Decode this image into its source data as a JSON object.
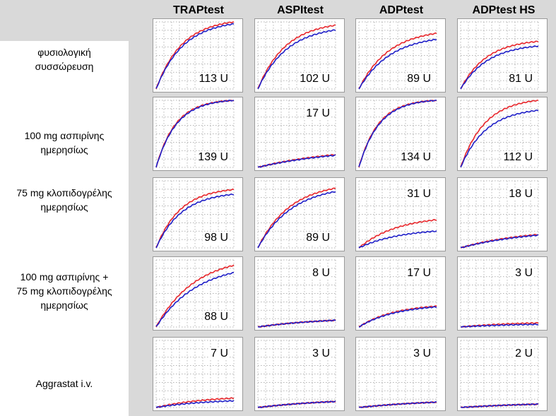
{
  "columns": [
    "TRAPtest",
    "ASPItest",
    "ADPtest",
    "ADPtest HS"
  ],
  "rows": [
    "φυσιολογική\nσυσσώρευση",
    "100 mg ασπιρίνης\nημερησίως",
    "75 mg κλοπιδογρέλης\nημερησίως",
    "100 mg ασπιρίνης +\n75 mg κλοπιδογρέλης\nημερησίως",
    "Aggrastat i.v."
  ],
  "colors": {
    "red": "#e8262b",
    "blue": "#1f1fc8",
    "grid": "#9a9a9a"
  },
  "chart_data": {
    "type": "line",
    "unit": "U",
    "panels": [
      [
        {
          "label": "113 U",
          "red": 1.0,
          "blue": 0.97,
          "k": 3.0
        },
        {
          "label": "102 U",
          "red": 0.95,
          "blue": 0.88,
          "k": 2.8
        },
        {
          "label": "89 U",
          "red": 0.83,
          "blue": 0.74,
          "k": 2.6
        },
        {
          "label": "81 U",
          "red": 0.71,
          "blue": 0.64,
          "k": 3.0
        }
      ],
      [
        {
          "label": "139 U",
          "red": 1.0,
          "blue": 1.0,
          "k": 4.0
        },
        {
          "label": "17 U",
          "red": 0.19,
          "blue": 0.18,
          "k": 1.0
        },
        {
          "label": "134 U",
          "red": 1.0,
          "blue": 1.0,
          "k": 4.0
        },
        {
          "label": "112 U",
          "red": 1.0,
          "blue": 0.85,
          "k": 3.2
        }
      ],
      [
        {
          "label": "98 U",
          "red": 0.87,
          "blue": 0.8,
          "k": 3.2
        },
        {
          "label": "89 U",
          "red": 0.89,
          "blue": 0.84,
          "k": 2.4
        },
        {
          "label": "31 U",
          "red": 0.42,
          "blue": 0.25,
          "k": 2.0
        },
        {
          "label": "18 U",
          "red": 0.2,
          "blue": 0.19,
          "k": 1.2
        }
      ],
      [
        {
          "label": "88 U",
          "red": 0.92,
          "blue": 0.81,
          "k": 2.0
        },
        {
          "label": "8 U",
          "red": 0.1,
          "blue": 0.1,
          "k": 1.2
        },
        {
          "label": "17 U",
          "red": 0.31,
          "blue": 0.3,
          "k": 2.2
        },
        {
          "label": "3 U",
          "red": 0.06,
          "blue": 0.04,
          "k": 1.5
        }
      ],
      [
        {
          "label": "7 U",
          "red": 0.14,
          "blue": 0.1,
          "k": 1.6
        },
        {
          "label": "3 U",
          "red": 0.09,
          "blue": 0.09,
          "k": 1.0
        },
        {
          "label": "3 U",
          "red": 0.08,
          "blue": 0.08,
          "k": 1.0
        },
        {
          "label": "2 U",
          "red": 0.05,
          "blue": 0.05,
          "k": 1.0
        }
      ]
    ]
  }
}
